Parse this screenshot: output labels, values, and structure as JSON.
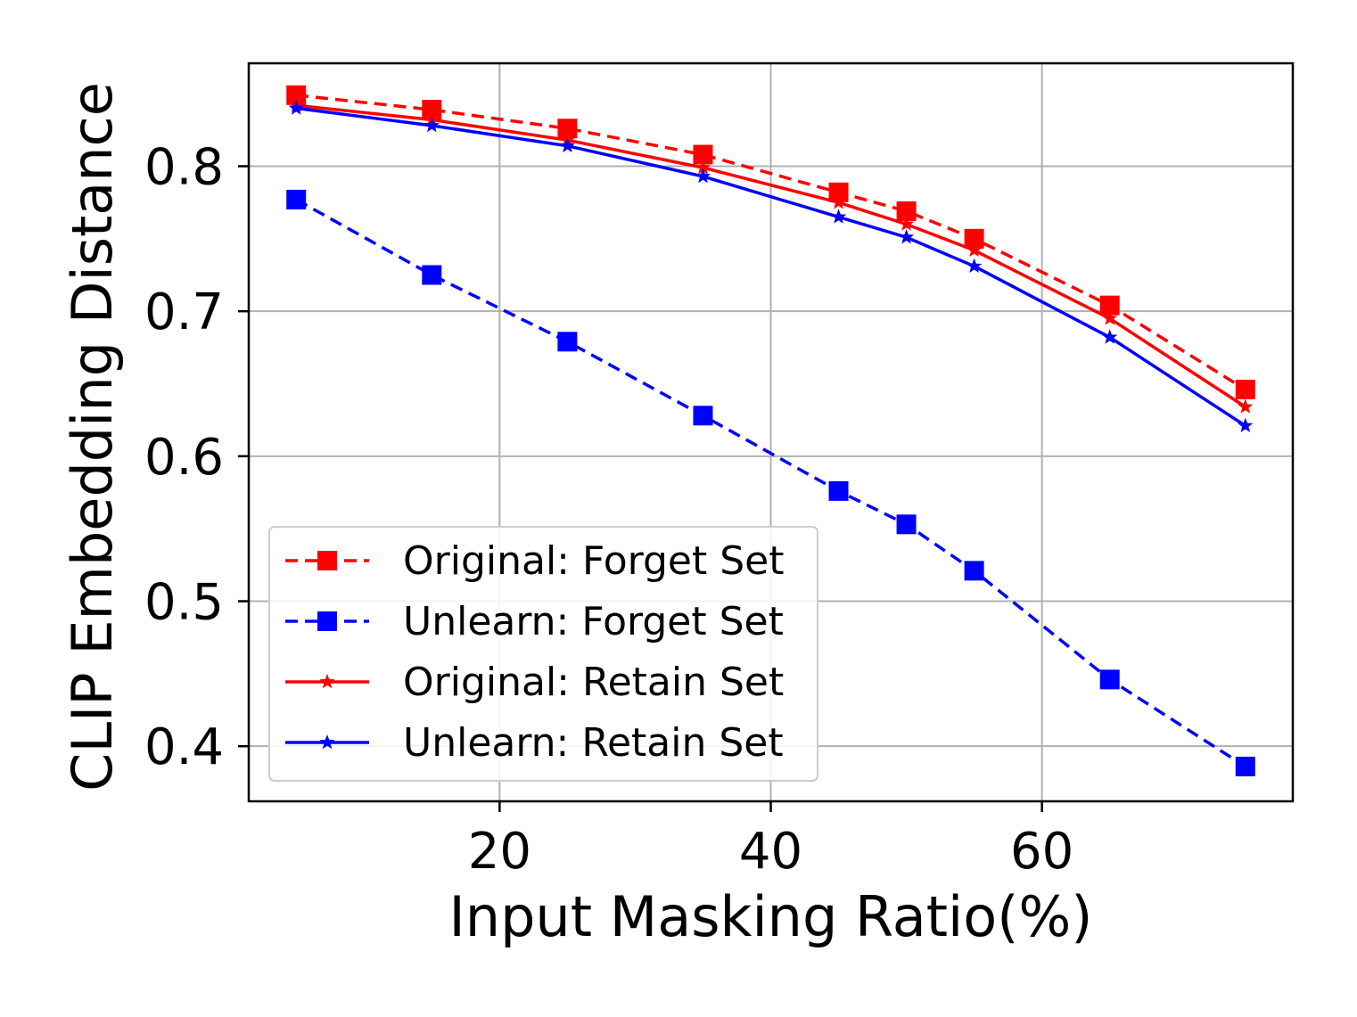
{
  "chart_data": {
    "type": "line",
    "xlabel": "Input Masking Ratio(%)",
    "ylabel": "CLIP Embedding Distance",
    "xlim": [
      1.5,
      78.5
    ],
    "ylim": [
      0.362,
      0.871
    ],
    "xticks": [
      20,
      40,
      60
    ],
    "yticks": [
      0.4,
      0.5,
      0.6,
      0.7,
      0.8
    ],
    "grid": true,
    "legend_position": "lower-left",
    "x": [
      5,
      15,
      25,
      35,
      45,
      50,
      55,
      65,
      75
    ],
    "series": [
      {
        "name": "Original: Forget Set",
        "color": "#ff0000",
        "line_style": "dashed",
        "marker": "square",
        "values": [
          0.849,
          0.839,
          0.826,
          0.808,
          0.782,
          0.769,
          0.75,
          0.704,
          0.646
        ]
      },
      {
        "name": "Unlearn: Forget Set",
        "color": "#0000ff",
        "line_style": "dashed",
        "marker": "square",
        "values": [
          0.777,
          0.725,
          0.679,
          0.628,
          0.576,
          0.553,
          0.521,
          0.446,
          0.386
        ]
      },
      {
        "name": "Original: Retain Set",
        "color": "#ff0000",
        "line_style": "solid",
        "marker": "star",
        "values": [
          0.842,
          0.832,
          0.818,
          0.799,
          0.775,
          0.76,
          0.742,
          0.695,
          0.634
        ]
      },
      {
        "name": "Unlearn: Retain Set",
        "color": "#0000ff",
        "line_style": "solid",
        "marker": "star",
        "values": [
          0.84,
          0.828,
          0.814,
          0.793,
          0.765,
          0.751,
          0.731,
          0.682,
          0.621
        ]
      }
    ]
  }
}
